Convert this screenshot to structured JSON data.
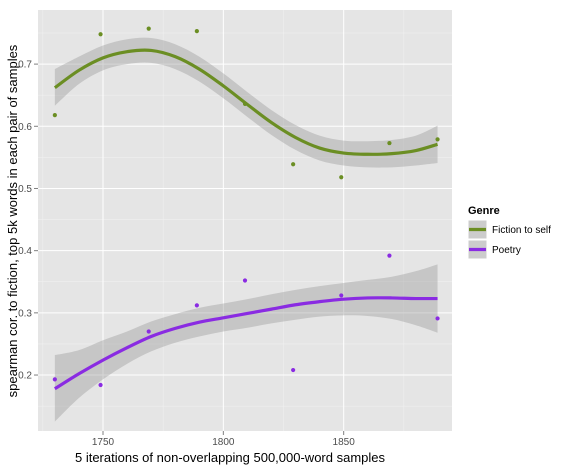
{
  "chart_data": {
    "type": "scatter",
    "title": "",
    "xlabel": "5 iterations of non-overlapping 500,000-word samples",
    "ylabel": "spearman cor. to fiction, top 5k words in each pair of samples",
    "xlim": [
      1723,
      1895
    ],
    "ylim": [
      0.11,
      0.787
    ],
    "x_ticks": [
      1750,
      1800,
      1850
    ],
    "x_tick_labels": [
      "1750",
      "1800",
      "1850"
    ],
    "y_ticks": [
      0.2,
      0.3,
      0.4,
      0.5,
      0.6,
      0.7
    ],
    "y_tick_labels": [
      "0.2",
      "0.3",
      "0.4",
      "0.5",
      "0.6",
      "0.7"
    ],
    "grid": true,
    "legend": {
      "title": "Genre",
      "position": "right"
    },
    "series": [
      {
        "name": "Fiction to self",
        "color": "#6b8e23",
        "points": [
          {
            "x": 1730,
            "y": 0.618
          },
          {
            "x": 1749,
            "y": 0.748
          },
          {
            "x": 1769,
            "y": 0.757
          },
          {
            "x": 1789,
            "y": 0.753
          },
          {
            "x": 1809,
            "y": 0.636
          },
          {
            "x": 1829,
            "y": 0.539
          },
          {
            "x": 1849,
            "y": 0.518
          },
          {
            "x": 1869,
            "y": 0.573
          },
          {
            "x": 1889,
            "y": 0.579
          }
        ],
        "smooth": [
          {
            "x": 1730,
            "y": 0.662,
            "lo": 0.633,
            "hi": 0.692
          },
          {
            "x": 1740,
            "y": 0.69,
            "lo": 0.668,
            "hi": 0.712
          },
          {
            "x": 1750,
            "y": 0.71,
            "lo": 0.69,
            "hi": 0.73
          },
          {
            "x": 1760,
            "y": 0.72,
            "lo": 0.7,
            "hi": 0.74
          },
          {
            "x": 1770,
            "y": 0.722,
            "lo": 0.702,
            "hi": 0.742
          },
          {
            "x": 1780,
            "y": 0.712,
            "lo": 0.692,
            "hi": 0.732
          },
          {
            "x": 1790,
            "y": 0.692,
            "lo": 0.672,
            "hi": 0.712
          },
          {
            "x": 1800,
            "y": 0.665,
            "lo": 0.645,
            "hi": 0.685
          },
          {
            "x": 1810,
            "y": 0.635,
            "lo": 0.615,
            "hi": 0.655
          },
          {
            "x": 1820,
            "y": 0.606,
            "lo": 0.586,
            "hi": 0.626
          },
          {
            "x": 1830,
            "y": 0.582,
            "lo": 0.562,
            "hi": 0.602
          },
          {
            "x": 1840,
            "y": 0.565,
            "lo": 0.545,
            "hi": 0.585
          },
          {
            "x": 1850,
            "y": 0.557,
            "lo": 0.537,
            "hi": 0.577
          },
          {
            "x": 1860,
            "y": 0.555,
            "lo": 0.534,
            "hi": 0.576
          },
          {
            "x": 1870,
            "y": 0.556,
            "lo": 0.534,
            "hi": 0.578
          },
          {
            "x": 1880,
            "y": 0.561,
            "lo": 0.537,
            "hi": 0.585
          },
          {
            "x": 1889,
            "y": 0.571,
            "lo": 0.541,
            "hi": 0.601
          }
        ]
      },
      {
        "name": "Poetry",
        "color": "#8a2be2",
        "points": [
          {
            "x": 1730,
            "y": 0.193
          },
          {
            "x": 1749,
            "y": 0.184
          },
          {
            "x": 1769,
            "y": 0.27
          },
          {
            "x": 1789,
            "y": 0.312
          },
          {
            "x": 1809,
            "y": 0.352
          },
          {
            "x": 1829,
            "y": 0.208
          },
          {
            "x": 1849,
            "y": 0.328
          },
          {
            "x": 1869,
            "y": 0.392
          },
          {
            "x": 1889,
            "y": 0.291
          }
        ],
        "smooth": [
          {
            "x": 1730,
            "y": 0.178,
            "lo": 0.125,
            "hi": 0.232
          },
          {
            "x": 1740,
            "y": 0.202,
            "lo": 0.163,
            "hi": 0.24
          },
          {
            "x": 1750,
            "y": 0.224,
            "lo": 0.193,
            "hi": 0.256
          },
          {
            "x": 1760,
            "y": 0.244,
            "lo": 0.218,
            "hi": 0.27
          },
          {
            "x": 1770,
            "y": 0.262,
            "lo": 0.238,
            "hi": 0.286
          },
          {
            "x": 1780,
            "y": 0.275,
            "lo": 0.252,
            "hi": 0.298
          },
          {
            "x": 1790,
            "y": 0.285,
            "lo": 0.262,
            "hi": 0.308
          },
          {
            "x": 1800,
            "y": 0.292,
            "lo": 0.27,
            "hi": 0.315
          },
          {
            "x": 1810,
            "y": 0.299,
            "lo": 0.276,
            "hi": 0.322
          },
          {
            "x": 1820,
            "y": 0.306,
            "lo": 0.283,
            "hi": 0.33
          },
          {
            "x": 1830,
            "y": 0.313,
            "lo": 0.289,
            "hi": 0.337
          },
          {
            "x": 1840,
            "y": 0.318,
            "lo": 0.294,
            "hi": 0.343
          },
          {
            "x": 1850,
            "y": 0.322,
            "lo": 0.296,
            "hi": 0.348
          },
          {
            "x": 1860,
            "y": 0.324,
            "lo": 0.295,
            "hi": 0.353
          },
          {
            "x": 1870,
            "y": 0.324,
            "lo": 0.29,
            "hi": 0.358
          },
          {
            "x": 1880,
            "y": 0.323,
            "lo": 0.28,
            "hi": 0.367
          },
          {
            "x": 1889,
            "y": 0.323,
            "lo": 0.268,
            "hi": 0.378
          }
        ]
      }
    ]
  }
}
